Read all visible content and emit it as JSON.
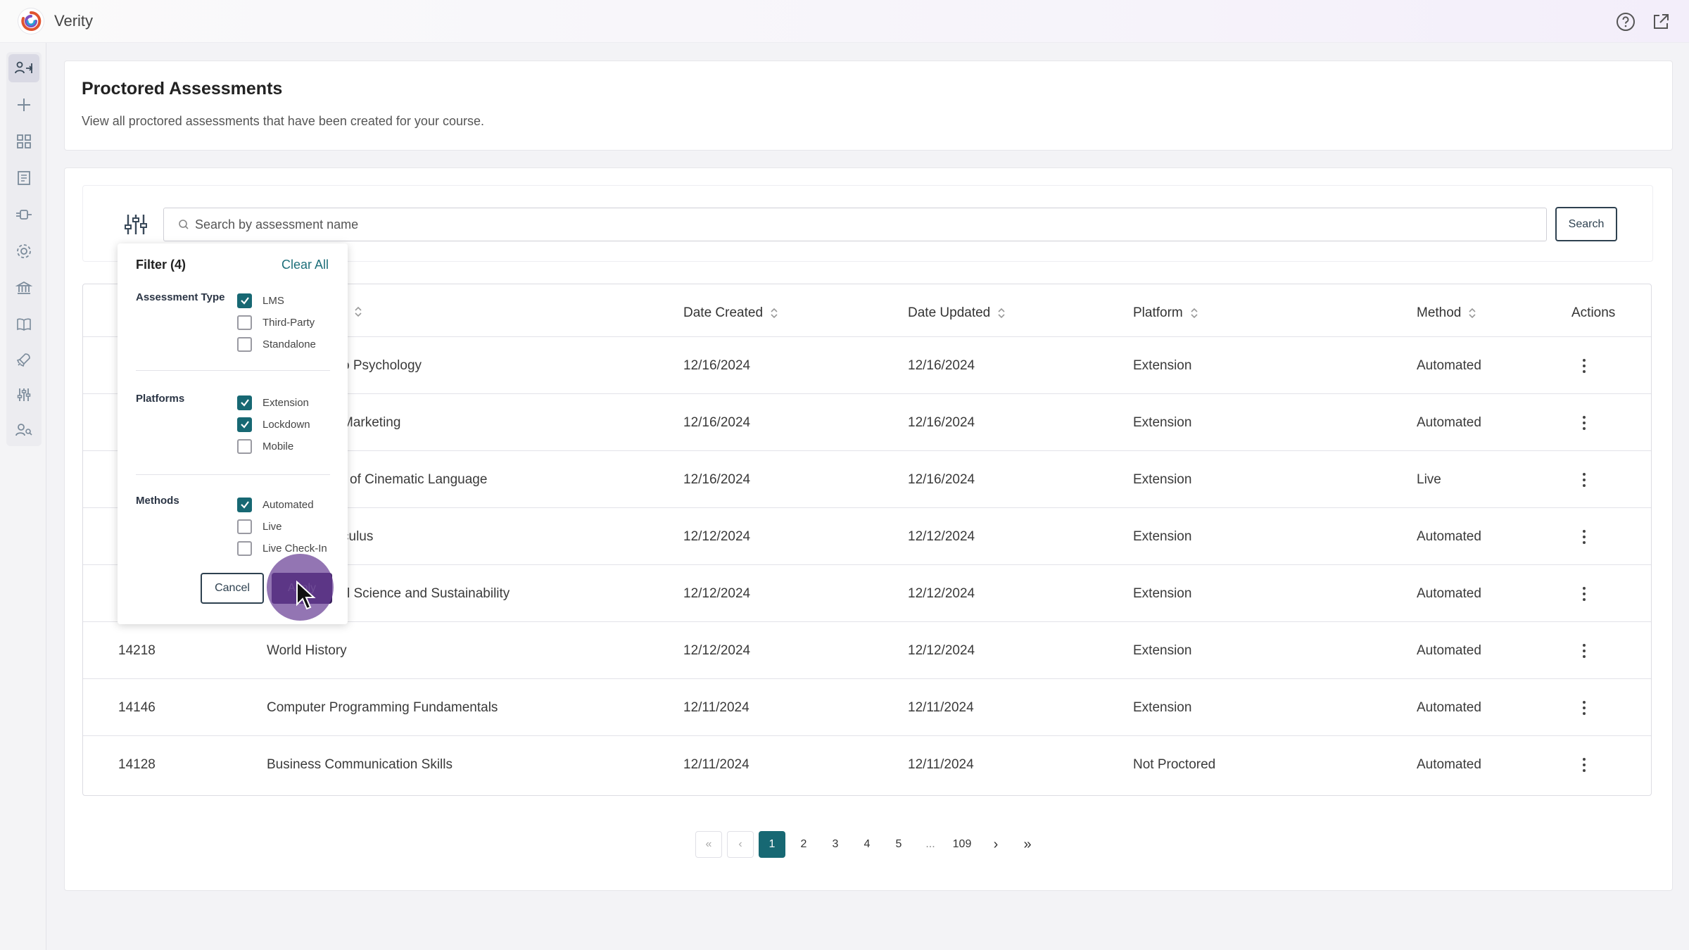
{
  "app": {
    "title": "Verity"
  },
  "page": {
    "title": "Proctored Assessments",
    "subtitle": "View all proctored assessments that have been created for your course."
  },
  "search": {
    "placeholder": "Search by assessment name",
    "value": "",
    "button_label": "Search"
  },
  "table": {
    "headers": {
      "date_created": "Date Created",
      "date_updated": "Date Updated",
      "platform": "Platform",
      "method": "Method",
      "actions": "Actions"
    },
    "rows": [
      {
        "id": "",
        "name": "o Psychology",
        "created": "12/16/2024",
        "updated": "12/16/2024",
        "platform": "Extension",
        "method": "Automated"
      },
      {
        "id": "",
        "name": "Marketing",
        "created": "12/16/2024",
        "updated": "12/16/2024",
        "platform": "Extension",
        "method": "Automated"
      },
      {
        "id": "",
        "name": "of Cinematic Language",
        "created": "12/16/2024",
        "updated": "12/16/2024",
        "platform": "Extension",
        "method": "Live"
      },
      {
        "id": "",
        "name": "culus",
        "created": "12/12/2024",
        "updated": "12/12/2024",
        "platform": "Extension",
        "method": "Automated"
      },
      {
        "id": "",
        "name": "l Science and Sustainability",
        "created": "12/12/2024",
        "updated": "12/12/2024",
        "platform": "Extension",
        "method": "Automated"
      },
      {
        "id": "14218",
        "name": "World History",
        "created": "12/12/2024",
        "updated": "12/12/2024",
        "platform": "Extension",
        "method": "Automated"
      },
      {
        "id": "14146",
        "name": "Computer Programming Fundamentals",
        "created": "12/11/2024",
        "updated": "12/11/2024",
        "platform": "Extension",
        "method": "Automated"
      },
      {
        "id": "14128",
        "name": "Business Communication Skills",
        "created": "12/11/2024",
        "updated": "12/11/2024",
        "platform": "Not Proctored",
        "method": "Automated"
      }
    ]
  },
  "pagination": {
    "first": "«",
    "prev": "‹",
    "next": "›",
    "last": "»",
    "pages": [
      "1",
      "2",
      "3",
      "4",
      "5"
    ],
    "ellipsis": "...",
    "last_page": "109",
    "current": "1"
  },
  "filter": {
    "title": "Filter (4)",
    "clear_label": "Clear All",
    "groups": [
      {
        "label": "Assessment Type",
        "options": [
          {
            "label": "LMS",
            "checked": true
          },
          {
            "label": "Third-Party",
            "checked": false
          },
          {
            "label": "Standalone",
            "checked": false
          }
        ]
      },
      {
        "label": "Platforms",
        "options": [
          {
            "label": "Extension",
            "checked": true
          },
          {
            "label": "Lockdown",
            "checked": true
          },
          {
            "label": "Mobile",
            "checked": false
          }
        ]
      },
      {
        "label": "Methods",
        "options": [
          {
            "label": "Automated",
            "checked": true
          },
          {
            "label": "Live",
            "checked": false
          },
          {
            "label": "Live Check-In",
            "checked": false
          }
        ]
      }
    ],
    "cancel_label": "Cancel",
    "apply_label": "Apply"
  },
  "sidebar": {
    "items": [
      {
        "icon": "user-switch-icon",
        "active": true
      },
      {
        "icon": "plus-icon",
        "active": false
      },
      {
        "icon": "grid-icon",
        "active": false
      },
      {
        "icon": "document-icon",
        "active": false
      },
      {
        "icon": "integration-icon",
        "active": false
      },
      {
        "icon": "gear-icon",
        "active": false
      },
      {
        "icon": "institution-icon",
        "active": false
      },
      {
        "icon": "book-icon",
        "active": false
      },
      {
        "icon": "rocket-icon",
        "active": false
      },
      {
        "icon": "sliders-icon",
        "active": false
      },
      {
        "icon": "user-search-icon",
        "active": false
      }
    ]
  },
  "colors": {
    "accent": "#176873",
    "apply_button": "#3a1f5e",
    "click_highlight": "#6940a0"
  }
}
